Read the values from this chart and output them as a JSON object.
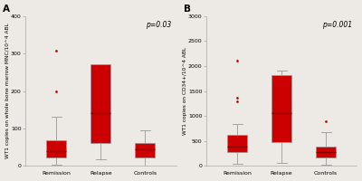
{
  "panel_A": {
    "label": "A",
    "ylabel": "WT1 copies on whole bone marrow MNC/10^4 ABL",
    "pvalue": "p=0.03",
    "ylim": [
      0,
      400
    ],
    "yticks": [
      0,
      100,
      200,
      300,
      400
    ],
    "categories": [
      "Remission",
      "Relapse",
      "Controls"
    ],
    "boxes": [
      {
        "q1": 22,
        "median": 38,
        "q3": 68,
        "whislo": 3,
        "whishi": 130,
        "fliers": [
          200,
          308
        ]
      },
      {
        "q1": 62,
        "median": 142,
        "q3": 272,
        "whislo": 18,
        "whishi": 272,
        "fliers": []
      },
      {
        "q1": 22,
        "median": 45,
        "q3": 62,
        "whislo": 0,
        "whishi": 95,
        "fliers": []
      }
    ]
  },
  "panel_B": {
    "label": "B",
    "ylabel": "WT1 copies on CD34+/10^4 ABL",
    "pvalue": "p=0.001",
    "ylim": [
      0,
      3000
    ],
    "yticks": [
      0,
      500,
      1000,
      1500,
      2000,
      2500,
      3000
    ],
    "categories": [
      "Remission",
      "Relapse",
      "Controls"
    ],
    "boxes": [
      {
        "q1": 280,
        "median": 380,
        "q3": 620,
        "whislo": 40,
        "whishi": 830,
        "fliers": [
          1290,
          1360,
          2100
        ]
      },
      {
        "q1": 480,
        "median": 1050,
        "q3": 1820,
        "whislo": 55,
        "whishi": 1900,
        "fliers": []
      },
      {
        "q1": 175,
        "median": 270,
        "q3": 380,
        "whislo": 28,
        "whishi": 680,
        "fliers": [
          900
        ]
      }
    ]
  },
  "box_color": "#cc0000",
  "box_edge_color": "#999999",
  "median_color": "#880000",
  "whisker_color": "#999999",
  "flier_color": "#cc0000",
  "background_color": "#ede9e4",
  "fontsize_ylabel": 4.2,
  "fontsize_tick": 4.5,
  "fontsize_pvalue": 5.5,
  "fontsize_panel": 7.5
}
